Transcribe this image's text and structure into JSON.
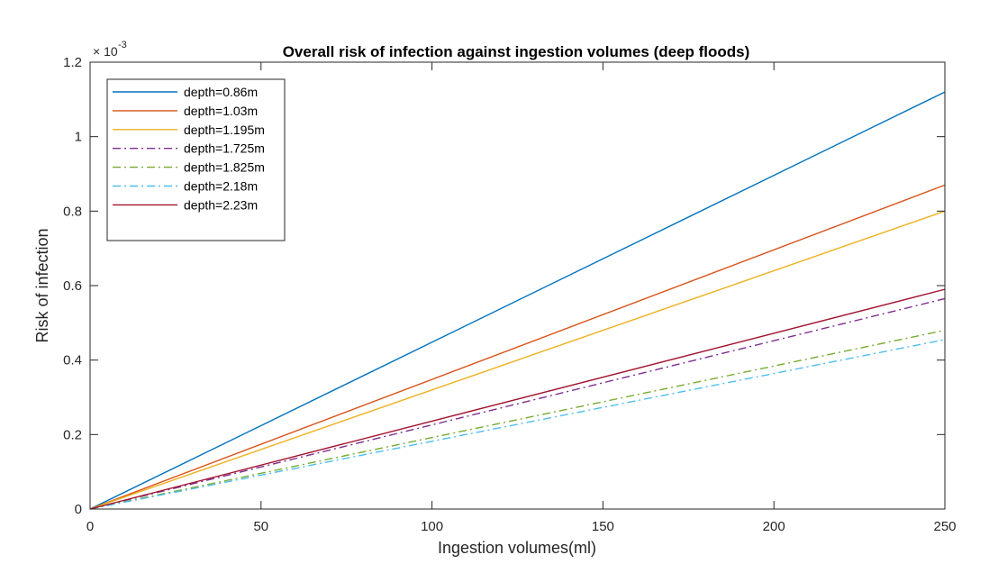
{
  "chart_data": {
    "type": "line",
    "title": "Overall risk of infection against ingestion volumes (deep floods)",
    "xlabel": "Ingestion volumes(ml)",
    "ylabel": "Risk of infection",
    "y_exponent_label": "× 10",
    "y_exponent_power": "-3",
    "xlim": [
      0,
      250
    ],
    "ylim": [
      0,
      0.0012
    ],
    "x_ticks": [
      0,
      50,
      100,
      150,
      200,
      250
    ],
    "x_tick_labels": [
      "0",
      "50",
      "100",
      "150",
      "200",
      "250"
    ],
    "y_ticks": [
      0,
      0.0002,
      0.0004,
      0.0006,
      0.0008,
      0.001,
      0.0012
    ],
    "y_tick_labels": [
      "0",
      "0.2",
      "0.4",
      "0.6",
      "0.8",
      "1",
      "1.2"
    ],
    "grid": false,
    "legend_position": "top-left",
    "series": [
      {
        "name": "depth=0.86m",
        "color": "#0072BD",
        "dash": "solid",
        "x": [
          0,
          250
        ],
        "y": [
          0,
          0.00112
        ]
      },
      {
        "name": "depth=1.03m",
        "color": "#D95319",
        "dash": "solid",
        "x": [
          0,
          250
        ],
        "y": [
          0,
          0.00087
        ]
      },
      {
        "name": "depth=1.195m",
        "color": "#EDB120",
        "dash": "solid",
        "x": [
          0,
          250
        ],
        "y": [
          0,
          0.0008
        ]
      },
      {
        "name": "depth=1.725m",
        "color": "#7E2F8E",
        "dash": "dashdot",
        "x": [
          0,
          250
        ],
        "y": [
          0,
          0.000565
        ]
      },
      {
        "name": "depth=1.825m",
        "color": "#77AC30",
        "dash": "dashdot",
        "x": [
          0,
          250
        ],
        "y": [
          0,
          0.00048
        ]
      },
      {
        "name": "depth=2.18m",
        "color": "#4DBEEE",
        "dash": "dashdot",
        "x": [
          0,
          250
        ],
        "y": [
          0,
          0.000455
        ]
      },
      {
        "name": "depth=2.23m",
        "color": "#A2142F",
        "dash": "solid",
        "x": [
          0,
          250
        ],
        "y": [
          0,
          0.00059
        ]
      }
    ]
  }
}
